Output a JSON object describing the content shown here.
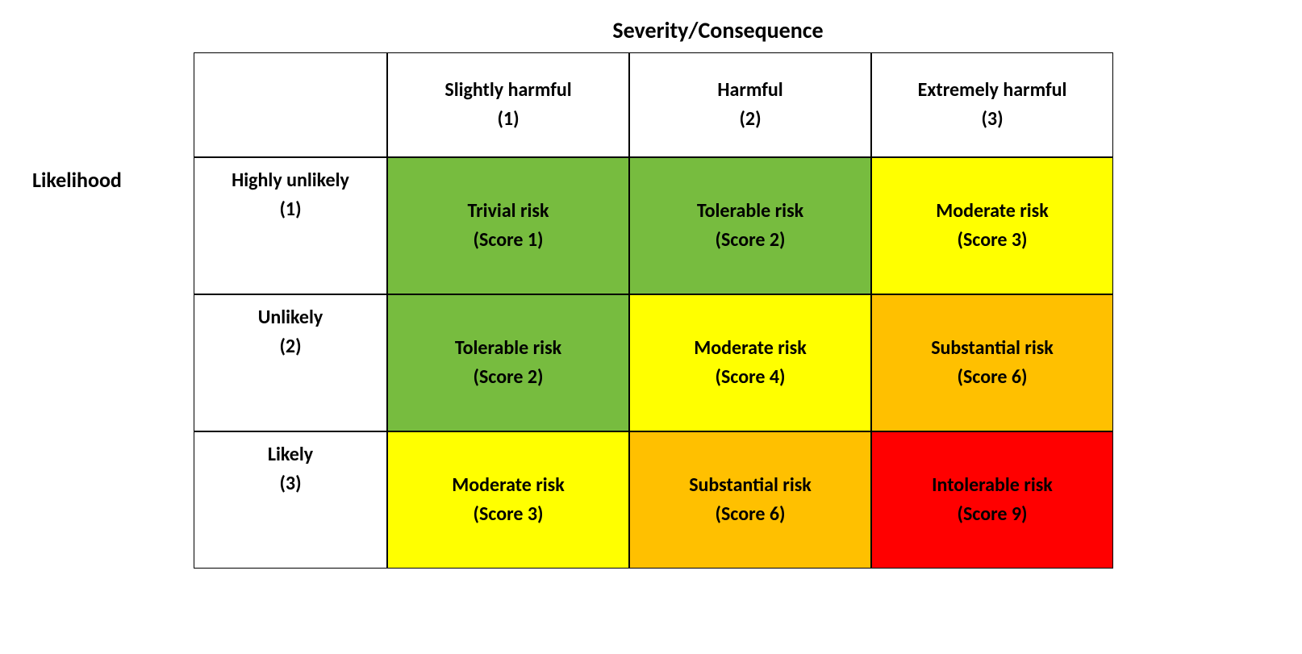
{
  "type": "risk-matrix",
  "axis_top_title": "Severity/Consequence",
  "axis_left_title": "Likelihood",
  "fonts": {
    "title_size_pt": 28,
    "cell_size_pt": 24,
    "weight": "bold",
    "family": "Calibri"
  },
  "colors": {
    "border": "#000000",
    "background": "#ffffff",
    "text": "#000000",
    "green": "#77bc3f",
    "yellow": "#ffff00",
    "orange": "#ffc000",
    "red": "#ff0000"
  },
  "columns": [
    {
      "label": "Slightly harmful",
      "score": "(1)"
    },
    {
      "label": "Harmful",
      "score": "(2)"
    },
    {
      "label": "Extremely harmful",
      "score": "(3)"
    }
  ],
  "rows": [
    {
      "label": "Highly unlikely",
      "score": "(1)"
    },
    {
      "label": "Unlikely",
      "score": "(2)"
    },
    {
      "label": "Likely",
      "score": "(3)"
    }
  ],
  "cells": [
    [
      {
        "label": "Trivial risk",
        "score": "(Score 1)",
        "color": "#77bc3f"
      },
      {
        "label": "Tolerable risk",
        "score": "(Score 2)",
        "color": "#77bc3f"
      },
      {
        "label": "Moderate risk",
        "score": "(Score 3)",
        "color": "#ffff00"
      }
    ],
    [
      {
        "label": "Tolerable risk",
        "score": "(Score 2)",
        "color": "#77bc3f"
      },
      {
        "label": "Moderate risk",
        "score": "(Score 4)",
        "color": "#ffff00"
      },
      {
        "label": "Substantial risk",
        "score": "(Score 6)",
        "color": "#ffc000"
      }
    ],
    [
      {
        "label": "Moderate risk",
        "score": "(Score 3)",
        "color": "#ffff00"
      },
      {
        "label": "Substantial risk",
        "score": "(Score 6)",
        "color": "#ffc000"
      },
      {
        "label": "Intolerable risk",
        "score": "(Score 9)",
        "color": "#ff0000"
      }
    ]
  ]
}
